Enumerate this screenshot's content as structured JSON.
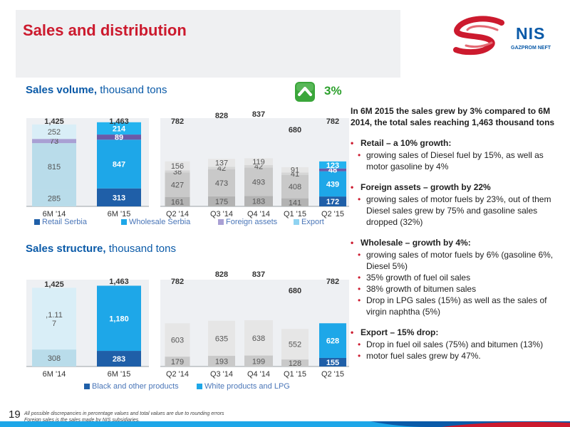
{
  "title": "Sales and distribution",
  "logo": {
    "name": "NIS",
    "tagline": "GAZPROM NEFT"
  },
  "growth_badge": {
    "value": "3%"
  },
  "page_number": "19",
  "footnote": [
    "All possible discrepancies in percentage values and total values are due to rounding errors",
    "Foreign sales is the sales made by NIS subsidiaries."
  ],
  "summary": {
    "lead": "In 6M 2015 the sales grew by 3% compared to 6M 2014, the total sales reaching 1,463 thousand tons",
    "blocks": [
      {
        "head": "Retail – a 10% growth:",
        "items": [
          "growing sales of Diesel fuel by 15%, as well as motor gasoline by 4%"
        ]
      },
      {
        "head": "Foreign assets – growth by 22%",
        "items": [
          "growing sales of motor fuels by 23%, out of them Diesel sales grew by 75% and gasoline sales dropped (32%)"
        ]
      },
      {
        "head": "Wholesale – growth by 4%:",
        "items": [
          "growing sales of motor fuels by 6% (gasoline 6%, Diesel 5%)",
          "35% growth of fuel oil sales",
          "38% growth of bitumen sales",
          "Drop in LPG sales (15%) as well as the sales of virgin naphtha (5%)"
        ]
      },
      {
        "head": "Export – 15% drop:",
        "items": [
          "Drop in fuel oil sales (75%) and bitumen (13%)",
          "motor fuel sales grew by 47%."
        ]
      }
    ]
  },
  "chart_data": [
    {
      "type": "bar",
      "stacked": true,
      "title_bold": "Sales volume,",
      "title_rest": " thousand tons",
      "categories": [
        "6M '14",
        "6M '15",
        "Q2 '14",
        "Q3 '14",
        "Q4 '14",
        "Q1 '15",
        "Q2 '15"
      ],
      "series": [
        {
          "name": "Retail Serbia",
          "values": [
            285,
            313,
            161,
            175,
            183,
            141,
            172
          ]
        },
        {
          "name": "Wholesale Serbia",
          "values": [
            815,
            847,
            427,
            473,
            493,
            408,
            439
          ]
        },
        {
          "name": "Foreign assets",
          "values": [
            73,
            89,
            38,
            42,
            42,
            41,
            48
          ]
        },
        {
          "name": "Export",
          "values": [
            252,
            214,
            156,
            137,
            119,
            91,
            123
          ]
        }
      ],
      "totals": [
        "1,425",
        "1,463",
        "782",
        "828",
        "837",
        "680",
        "782"
      ],
      "labels": [
        [
          "285",
          "313",
          "161",
          "175",
          "183",
          "141",
          "172"
        ],
        [
          "815",
          "847",
          "427",
          "473",
          "493",
          "408",
          "439"
        ],
        [
          "73",
          "89",
          "38",
          "42",
          "42",
          "41",
          "48"
        ],
        [
          "252",
          "214",
          "156",
          "137",
          "119",
          "91",
          "123"
        ]
      ],
      "legend_placement": "bottom"
    },
    {
      "type": "bar",
      "stacked": true,
      "title_bold": "Sales structure,",
      "title_rest": " thousand tons",
      "categories": [
        "6M '14",
        "6M '15",
        "Q2 '14",
        "Q3 '14",
        "Q4 '14",
        "Q1 '15",
        "Q2 '15"
      ],
      "series": [
        {
          "name": "Black and other products",
          "values": [
            308,
            283,
            179,
            193,
            199,
            128,
            155
          ]
        },
        {
          "name": "White products and LPG",
          "values": [
            1117,
            1180,
            603,
            635,
            638,
            552,
            628
          ]
        }
      ],
      "totals": [
        "1,425",
        "1,463",
        "782",
        "828",
        "837",
        "680",
        "782"
      ],
      "labels": [
        [
          "308",
          "283",
          "179",
          "193",
          "199",
          "128",
          "155"
        ],
        [
          ",1.11\n7",
          "1,180",
          "603",
          "635",
          "638",
          "552",
          "628"
        ]
      ],
      "legend_placement": "bottom"
    }
  ],
  "colors": {
    "title_red": "#cc1a2e",
    "blue": "#0a5aa8",
    "highlight_blue": "#1ea7e8",
    "growth_green": "#2ca02c",
    "grey_panel": "#eff0f2"
  }
}
